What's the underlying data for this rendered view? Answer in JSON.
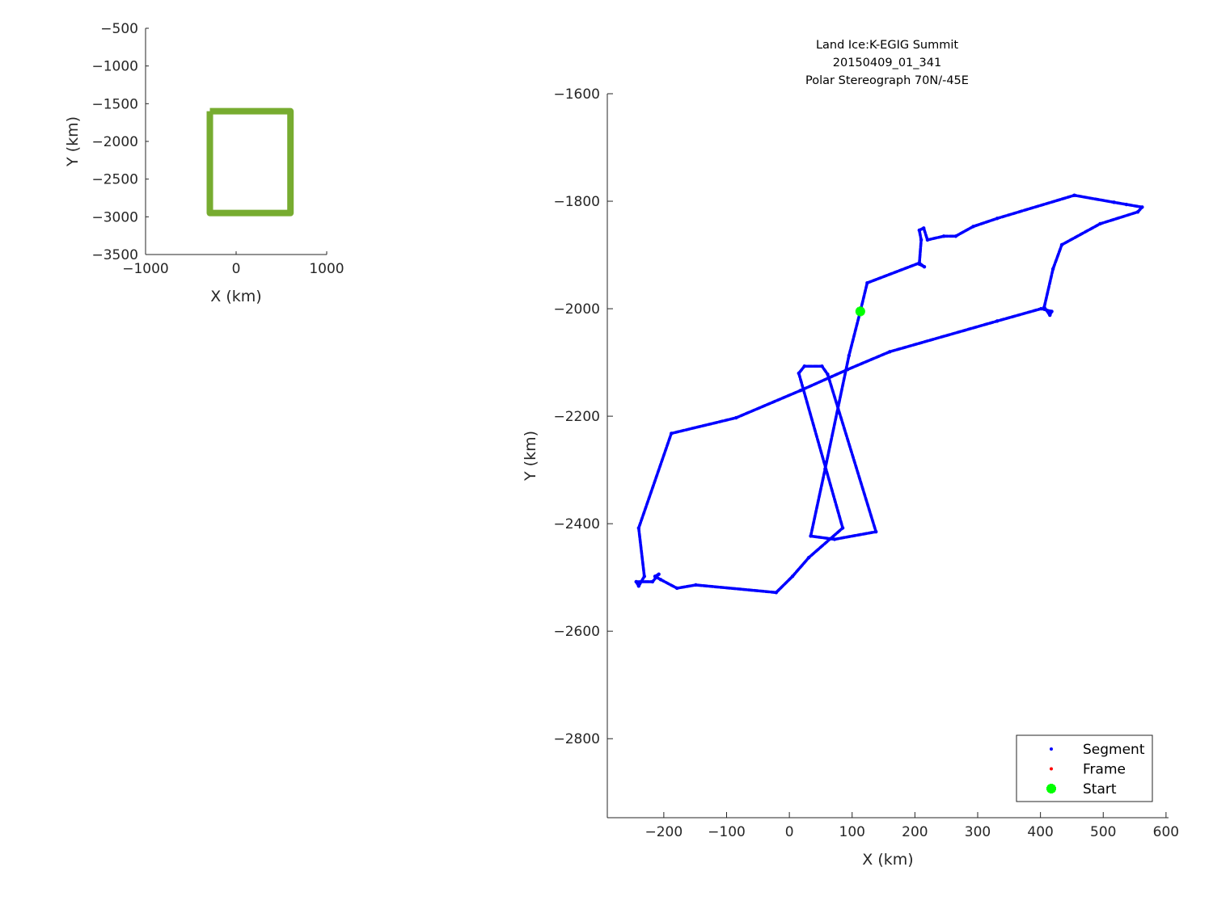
{
  "chart_data": [
    {
      "type": "line",
      "xlabel": "X (km)",
      "ylabel": "Y (km)",
      "xlim": [
        -1000,
        1000
      ],
      "ylim": [
        -3500,
        -500
      ],
      "xticks": [
        "-1000",
        "0",
        "1000"
      ],
      "yticks": [
        "-500",
        "-1000",
        "-1500",
        "-2000",
        "-2500",
        "-3000",
        "-3500"
      ],
      "grid": false,
      "color": "#77AC30",
      "series": [
        {
          "x": [
            -290,
            600,
            600,
            -290,
            -290
          ],
          "y": [
            -1600,
            -1600,
            -2950,
            -2950,
            -1600
          ]
        }
      ]
    },
    {
      "type": "scatter",
      "title": [
        "Land Ice:K-EGIG Summit",
        "20150409_01_341",
        "Polar Stereograph 70N/-45E"
      ],
      "xlabel": "X (km)",
      "ylabel": "Y (km)",
      "xlim": [
        -290,
        604
      ],
      "ylim": [
        -2947,
        -1600
      ],
      "xticks": [
        "-200",
        "-100",
        "0",
        "100",
        "200",
        "300",
        "400",
        "500",
        "600"
      ],
      "yticks": [
        "-1600",
        "-1800",
        "-2000",
        "-2200",
        "-2400",
        "-2600",
        "-2800"
      ],
      "grid": false,
      "legend_position": "bottom-right",
      "legend": [
        {
          "label": "Segment",
          "color": "#0000FF",
          "marker": "dot"
        },
        {
          "label": "Frame",
          "color": "#FF0000",
          "marker": "dot"
        },
        {
          "label": "Start",
          "color": "#00FF00",
          "marker": "asterisk"
        }
      ],
      "series": [
        {
          "name": "Segment",
          "color": "#0000FF",
          "x": [
            113,
            95,
            57,
            34,
            72,
            138,
            61,
            52,
            24,
            15,
            85,
            31,
            5,
            -21,
            -149,
            -179,
            -205,
            -214,
            -208,
            -218,
            -244,
            -240,
            -231,
            -240,
            -188,
            -85,
            18,
            93,
            160,
            331,
            401,
            418,
            415,
            406,
            420,
            434,
            495,
            555,
            562,
            537,
            517,
            454,
            331,
            293,
            265,
            246,
            220,
            214,
            207,
            210,
            207,
            215,
            207,
            124,
            113
          ],
          "y": [
            -2005,
            -2087,
            -2298,
            -2423,
            -2429,
            -2415,
            -2122,
            -2107,
            -2107,
            -2120,
            -2408,
            -2463,
            -2498,
            -2528,
            -2514,
            -2520,
            -2504,
            -2498,
            -2494,
            -2508,
            -2508,
            -2516,
            -2498,
            -2408,
            -2232,
            -2203,
            -2152,
            -2113,
            -2080,
            -2023,
            -2000,
            -2005,
            -2012,
            -1997,
            -1926,
            -1881,
            -1842,
            -1820,
            -1811,
            -1806,
            -1802,
            -1789,
            -1832,
            -1847,
            -1865,
            -1865,
            -1872,
            -1850,
            -1854,
            -1872,
            -1917,
            -1922,
            -1915,
            -1952,
            -2005
          ]
        },
        {
          "name": "Frame",
          "color": "#FF0000",
          "x": [],
          "y": []
        },
        {
          "name": "Start",
          "color": "#00FF00",
          "x": [
            113
          ],
          "y": [
            -2005
          ]
        }
      ]
    }
  ]
}
